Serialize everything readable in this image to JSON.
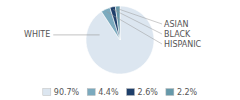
{
  "chart_data": {
    "type": "pie",
    "categories": [
      "WHITE",
      "HISPANIC",
      "BLACK",
      "ASIAN"
    ],
    "values": [
      90.7,
      4.4,
      2.6,
      2.2
    ],
    "value_labels": [
      "90.7%",
      "4.4%",
      "2.6%",
      "2.2%"
    ],
    "colors": [
      "#dce6f0",
      "#7baabe",
      "#1e3f6a",
      "#6699aa"
    ],
    "legend": "bottom"
  }
}
